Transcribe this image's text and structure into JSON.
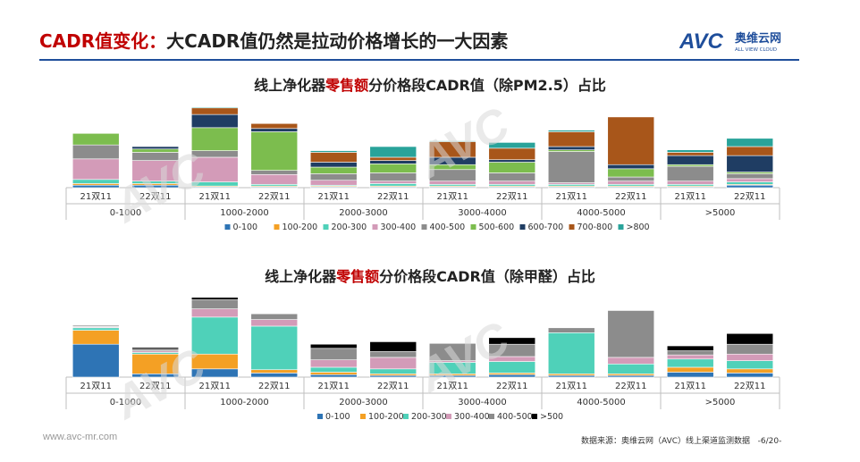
{
  "header": {
    "title_red": "CADR值变化：",
    "title_black": "大CADR值仍然是拉动价格增长的一大因素",
    "logo_text": "AVC",
    "logo_cn": "奥维云网",
    "logo_en": "ALL VIEW CLOUD"
  },
  "colors": {
    "accent_red": "#c00000",
    "rule_blue": "#1f4e9b",
    "series": {
      "0-100": "#2e74b5",
      "100-200": "#f4a024",
      "200-300": "#4fd1b9",
      "300-400": "#d39bb8",
      "400-500": "#8c8c8c",
      "500-600": "#7cbd4e",
      "600-700": "#1f3d63",
      ">800": "#29a39a",
      "700-800": "#a8561a"
    }
  },
  "charts": [
    {
      "title_a": "线上净化器",
      "title_b": "零售额",
      "title_c": "分价格段CADR值（除PM2.5）占比"
    },
    {
      "title_a": "线上净化器",
      "title_b": "零售额",
      "title_c": "分价格段CADR值（除甲醛）占比"
    }
  ],
  "chart_data": [
    {
      "type": "bar",
      "stacked": true,
      "title": "线上净化器零售额分价格段CADR值（除PM2.5）占比",
      "categories": [
        "21双11",
        "22双11",
        "21双11",
        "22双11",
        "21双11",
        "22双11",
        "21双11",
        "22双11",
        "21双11",
        "22双11",
        "21双11",
        "22双11"
      ],
      "groups": [
        "0-1000",
        "1000-2000",
        "2000-3000",
        "3000-4000",
        "4000-5000",
        ">5000"
      ],
      "ylim": [
        0,
        100
      ],
      "series": [
        {
          "name": "0-100",
          "values": [
            3,
            3,
            1,
            1,
            1,
            1,
            1,
            1,
            1,
            1,
            1,
            3
          ]
        },
        {
          "name": "100-200",
          "values": [
            2,
            2,
            1,
            1,
            1,
            1,
            1,
            1,
            1,
            1,
            1,
            1
          ]
        },
        {
          "name": "200-300",
          "values": [
            5,
            3,
            5,
            2,
            1,
            3,
            2,
            2,
            2,
            2,
            2,
            3
          ]
        },
        {
          "name": "300-400",
          "values": [
            25,
            25,
            30,
            12,
            6,
            3,
            4,
            4,
            2,
            4,
            4,
            4
          ]
        },
        {
          "name": "400-500",
          "values": [
            17,
            10,
            8,
            5,
            8,
            10,
            14,
            10,
            38,
            5,
            18,
            6
          ]
        },
        {
          "name": "500-600",
          "values": [
            14,
            4,
            28,
            47,
            8,
            11,
            6,
            13,
            2,
            10,
            2,
            2
          ]
        },
        {
          "name": "600-700",
          "values": [
            0,
            3,
            16,
            4,
            6,
            4,
            9,
            3,
            4,
            5,
            11,
            20
          ]
        },
        {
          "name": "700-800",
          "values": [
            0,
            0,
            8,
            6,
            12,
            4,
            19,
            14,
            18,
            58,
            4,
            11
          ]
        },
        {
          "name": ">800",
          "values": [
            0,
            0,
            1,
            0,
            2,
            13,
            1,
            7,
            2,
            0,
            3,
            10
          ]
        }
      ]
    },
    {
      "type": "bar",
      "stacked": true,
      "title": "线上净化器零售额分价格段CADR值（除甲醛）占比",
      "categories": [
        "21双11",
        "22双11",
        "21双11",
        "22双11",
        "21双11",
        "22双11",
        "21双11",
        "22双11",
        "21双11",
        "22双11",
        "21双11",
        "22双11"
      ],
      "groups": [
        "0-1000",
        "1000-2000",
        "2000-3000",
        "3000-4000",
        "4000-5000",
        ">5000"
      ],
      "ylim": [
        0,
        100
      ],
      "series": [
        {
          "name": "0-100",
          "values": [
            40,
            4,
            10,
            5,
            3,
            2,
            2,
            3,
            2,
            2,
            6,
            5
          ]
        },
        {
          "name": "100-200",
          "values": [
            17,
            24,
            18,
            4,
            3,
            2,
            2,
            2,
            2,
            2,
            6,
            5
          ]
        },
        {
          "name": "200-300",
          "values": [
            3,
            2,
            45,
            53,
            6,
            6,
            14,
            14,
            50,
            12,
            10,
            10
          ]
        },
        {
          "name": "300-400",
          "values": [
            1,
            2,
            10,
            8,
            9,
            14,
            2,
            6,
            0,
            8,
            5,
            8
          ]
        },
        {
          "name": "400-500",
          "values": [
            1,
            2,
            11,
            7,
            14,
            7,
            21,
            15,
            6,
            57,
            5,
            12
          ]
        },
        {
          "name": ">500",
          "values": [
            1,
            2,
            3,
            0,
            5,
            12,
            0,
            8,
            0,
            0,
            6,
            13
          ]
        }
      ]
    }
  ],
  "legend1": [
    "0-100",
    "100-200",
    "200-300",
    "300-400",
    "400-500",
    "500-600",
    "600-700",
    "700-800",
    ">800"
  ],
  "legend2": [
    "0-100",
    "100-200",
    "200-300",
    "300-400",
    "400-500",
    ">500"
  ],
  "footer": {
    "website": "www.avc-mr.com",
    "source": "数据来源：奥维云网（AVC）线上渠道监测数据",
    "page": "-6/20-"
  }
}
